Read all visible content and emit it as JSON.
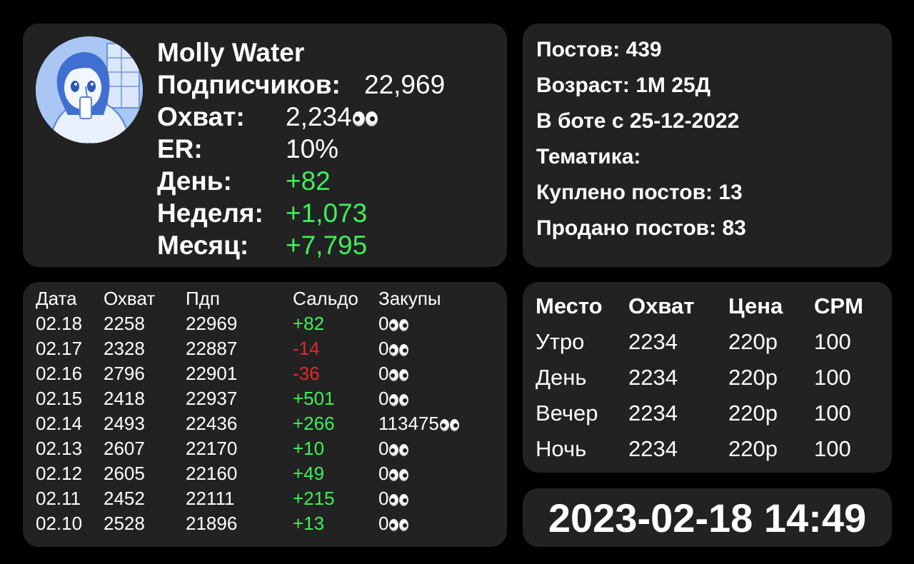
{
  "profile": {
    "name": "Molly Water",
    "subscribers_label": "Подписчиков:",
    "subscribers_value": "22,969",
    "reach_label": "Охват:",
    "reach_value": "2,234",
    "er_label": "ER:",
    "er_value": "10%",
    "day_label": "День:",
    "day_value": "+82",
    "week_label": "Неделя:",
    "week_value": "+1,073",
    "month_label": "Месяц:",
    "month_value": "+7,795",
    "icon": "eyes-icon",
    "positive_color": "#3df05a"
  },
  "info": {
    "posts": "Постов: 439",
    "age": "Возраст: 1М 25Д",
    "in_bot": "В боте с 25-12-2022",
    "topic": "Тематика:",
    "bought": "Куплено постов: 13",
    "sold": "Продано постов: 83"
  },
  "history": {
    "headers": [
      "Дата",
      "Охват",
      "Пдп",
      "Сальдо",
      "Закупы"
    ],
    "rows": [
      {
        "date": "02.18",
        "reach": "2258",
        "subs": "22969",
        "balance": "+82",
        "purchases": "0",
        "positive": true
      },
      {
        "date": "02.17",
        "reach": "2328",
        "subs": "22887",
        "balance": "-14",
        "purchases": "0",
        "positive": false
      },
      {
        "date": "02.16",
        "reach": "2796",
        "subs": "22901",
        "balance": "-36",
        "purchases": "0",
        "positive": false
      },
      {
        "date": "02.15",
        "reach": "2418",
        "subs": "22937",
        "balance": "+501",
        "purchases": "0",
        "positive": true
      },
      {
        "date": "02.14",
        "reach": "2493",
        "subs": "22436",
        "balance": "+266",
        "purchases": "113475",
        "positive": true
      },
      {
        "date": "02.13",
        "reach": "2607",
        "subs": "22170",
        "balance": "+10",
        "purchases": "0",
        "positive": true
      },
      {
        "date": "02.12",
        "reach": "2605",
        "subs": "22160",
        "balance": "+49",
        "purchases": "0",
        "positive": true
      },
      {
        "date": "02.11",
        "reach": "2452",
        "subs": "22111",
        "balance": "+215",
        "purchases": "0",
        "positive": true
      },
      {
        "date": "02.10",
        "reach": "2528",
        "subs": "21896",
        "balance": "+13",
        "purchases": "0",
        "positive": true
      }
    ],
    "negative_color": "#e8262a"
  },
  "prices": {
    "headers": [
      "Место",
      "Охват",
      "Цена",
      "CPM"
    ],
    "rows": [
      {
        "slot": "Утро",
        "reach": "2234",
        "price": "220р",
        "cpm": "100"
      },
      {
        "slot": "День",
        "reach": "2234",
        "price": "220р",
        "cpm": "100"
      },
      {
        "slot": "Вечер",
        "reach": "2234",
        "price": "220р",
        "cpm": "100"
      },
      {
        "slot": "Ночь",
        "reach": "2234",
        "price": "220р",
        "cpm": "100"
      }
    ]
  },
  "datetime": "2023-02-18 14:49"
}
